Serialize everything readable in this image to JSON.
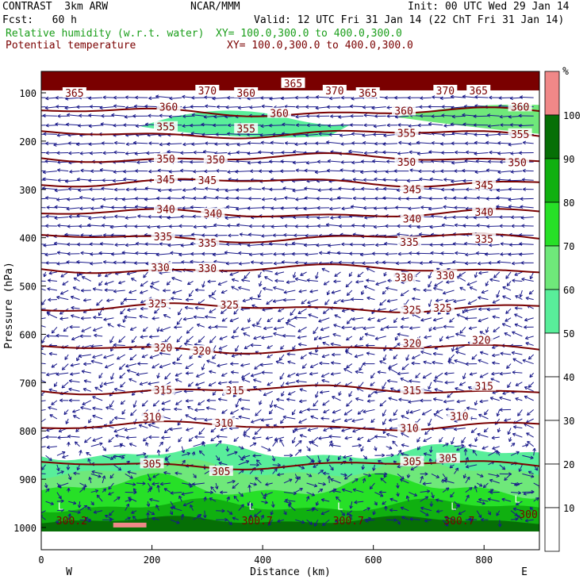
{
  "header": {
    "model": "CONTRAST  3km ARW",
    "center": "NCAR/MMM",
    "init": "Init: 00 UTC Wed 29 Jan 14",
    "fcst": "Fcst:   60 h",
    "valid": "Valid: 12 UTC Fri 31 Jan 14 (22 ChT Fri 31 Jan 14)",
    "field1": "Relative humidity (w.r.t. water)",
    "field1_xy": "XY= 100.0,300.0 to 400.0,300.0",
    "field2": "Potential temperature",
    "field2_xy": "XY= 100.0,300.0 to 400.0,300.0",
    "colors": {
      "field1": "#1a9e1a",
      "field2": "#7a0000"
    }
  },
  "chart_data": {
    "type": "cross-section",
    "xlabel": "Distance (km)",
    "ylabel": "Pressure (hPa)",
    "x_ticks": [
      0,
      200,
      400,
      600,
      800
    ],
    "x_range": [
      0,
      900
    ],
    "y_ticks": [
      100,
      200,
      300,
      400,
      500,
      600,
      700,
      800,
      900,
      1000
    ],
    "y_range": [
      50,
      1050
    ],
    "endpoint_labels": {
      "left": "W",
      "right": "E"
    },
    "colorbar": {
      "unit": "%",
      "levels": [
        10,
        20,
        30,
        40,
        50,
        60,
        70,
        80,
        90,
        100
      ],
      "fill_colors": [
        "#ffffff",
        "#ffffff",
        "#ffffff",
        "#ffffff",
        "#ffffff",
        "#59ee9a",
        "#6fe87a",
        "#27e027",
        "#10b010",
        "#066f06",
        "#f08888"
      ]
    },
    "theta_isolines": [
      {
        "value": "305",
        "p": 870,
        "labels": [
          {
            "x": 200,
            "dp": 0
          },
          {
            "x": 325,
            "dp": 5
          },
          {
            "x": 670,
            "dp": -5
          },
          {
            "x": 735,
            "dp": -8
          }
        ]
      },
      {
        "value": "310",
        "p": 790,
        "labels": [
          {
            "x": 200,
            "dp": -10
          },
          {
            "x": 330,
            "dp": -5
          },
          {
            "x": 665,
            "dp": -5
          },
          {
            "x": 755,
            "dp": -20
          }
        ]
      },
      {
        "value": "315",
        "p": 715,
        "labels": [
          {
            "x": 220,
            "dp": 0
          },
          {
            "x": 350,
            "dp": 0
          },
          {
            "x": 670,
            "dp": -5
          },
          {
            "x": 800,
            "dp": -10
          }
        ]
      },
      {
        "value": "320",
        "p": 630,
        "labels": [
          {
            "x": 220,
            "dp": 0
          },
          {
            "x": 290,
            "dp": 0
          },
          {
            "x": 670,
            "dp": -10
          },
          {
            "x": 795,
            "dp": -10
          }
        ]
      },
      {
        "value": "325",
        "p": 545,
        "labels": [
          {
            "x": 210,
            "dp": 0
          },
          {
            "x": 340,
            "dp": -5
          },
          {
            "x": 670,
            "dp": -5
          },
          {
            "x": 725,
            "dp": -5
          }
        ]
      },
      {
        "value": "330",
        "p": 465,
        "labels": [
          {
            "x": 215,
            "dp": -5
          },
          {
            "x": 300,
            "dp": -5
          },
          {
            "x": 655,
            "dp": 15
          },
          {
            "x": 730,
            "dp": 10
          }
        ]
      },
      {
        "value": "335",
        "p": 400,
        "labels": [
          {
            "x": 220,
            "dp": 0
          },
          {
            "x": 300,
            "dp": 5
          },
          {
            "x": 665,
            "dp": 10
          },
          {
            "x": 800,
            "dp": 10
          }
        ]
      },
      {
        "value": "340",
        "p": 350,
        "labels": [
          {
            "x": 225,
            "dp": 0
          },
          {
            "x": 310,
            "dp": 0
          },
          {
            "x": 670,
            "dp": 5
          },
          {
            "x": 800,
            "dp": 5
          }
        ]
      },
      {
        "value": "345",
        "p": 285,
        "labels": [
          {
            "x": 225,
            "dp": 0
          },
          {
            "x": 300,
            "dp": 0
          },
          {
            "x": 670,
            "dp": 5
          },
          {
            "x": 800,
            "dp": 5
          }
        ]
      },
      {
        "value": "350",
        "p": 235,
        "labels": [
          {
            "x": 225,
            "dp": 0
          },
          {
            "x": 315,
            "dp": 0
          },
          {
            "x": 660,
            "dp": 5
          },
          {
            "x": 860,
            "dp": 5
          }
        ]
      },
      {
        "value": "355",
        "p": 185,
        "labels": [
          {
            "x": 225,
            "dp": -15
          },
          {
            "x": 370,
            "dp": -20
          },
          {
            "x": 660,
            "dp": 0
          },
          {
            "x": 865,
            "dp": 0
          }
        ]
      },
      {
        "value": "360",
        "p": 140,
        "labels": [
          {
            "x": 230,
            "dp": -5
          },
          {
            "x": 430,
            "dp": -5
          },
          {
            "x": 655,
            "dp": -5
          },
          {
            "x": 865,
            "dp": -5
          }
        ]
      }
    ],
    "upper_labels": [
      {
        "value": "365",
        "x": 60,
        "p": 100
      },
      {
        "value": "370",
        "x": 300,
        "p": 95
      },
      {
        "value": "360",
        "x": 370,
        "p": 100
      },
      {
        "value": "365",
        "x": 455,
        "p": 80
      },
      {
        "value": "370",
        "x": 530,
        "p": 95
      },
      {
        "value": "365",
        "x": 590,
        "p": 100
      },
      {
        "value": "370",
        "x": 730,
        "p": 95
      },
      {
        "value": "365",
        "x": 790,
        "p": 95
      }
    ],
    "surface_labels": [
      {
        "value": "300.2",
        "x": 55,
        "p": 985
      },
      {
        "value": "300.7",
        "x": 390,
        "p": 985
      },
      {
        "value": "300.7",
        "x": 555,
        "p": 985
      },
      {
        "value": "300.7",
        "x": 755,
        "p": 985
      },
      {
        "value": "300",
        "x": 880,
        "p": 972
      }
    ],
    "L_markers": [
      {
        "x": 35,
        "p": 955
      },
      {
        "x": 380,
        "p": 955
      },
      {
        "x": 540,
        "p": 955
      },
      {
        "x": 745,
        "p": 955
      },
      {
        "x": 860,
        "p": 940
      }
    ],
    "wind_vectors": "dense field, predominantly westerly aloft, variable near surface"
  }
}
